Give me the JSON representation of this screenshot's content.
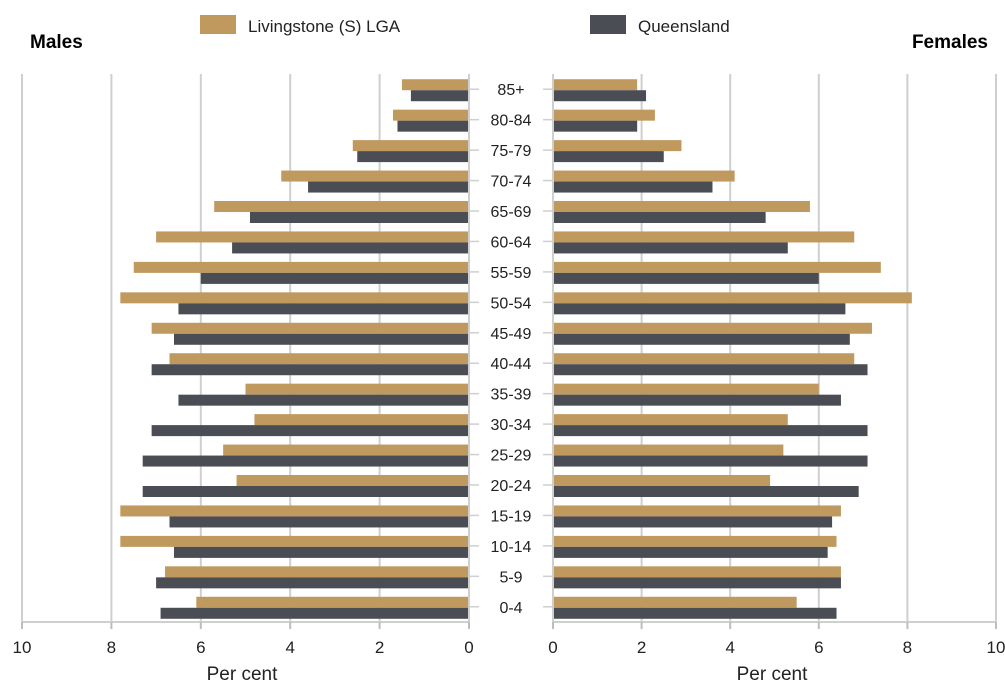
{
  "chart_data": {
    "type": "bar",
    "subtype": "population-pyramid",
    "orientation": "horizontal",
    "left_title": "Males",
    "right_title": "Females",
    "legend": [
      {
        "name": "Livingstone (S) LGA",
        "color": "#c0995f"
      },
      {
        "name": "Queensland",
        "color": "#4a4d53"
      }
    ],
    "categories": [
      "85+",
      "80-84",
      "75-79",
      "70-74",
      "65-69",
      "60-64",
      "55-59",
      "50-54",
      "45-49",
      "40-44",
      "35-39",
      "30-34",
      "25-29",
      "20-24",
      "15-19",
      "10-14",
      "5-9",
      "0-4"
    ],
    "series": [
      {
        "name": "Livingstone (S) LGA",
        "color": "#c0995f",
        "males": [
          1.5,
          1.7,
          2.6,
          4.2,
          5.7,
          7.0,
          7.5,
          7.8,
          7.1,
          6.7,
          5.0,
          4.8,
          5.5,
          5.2,
          7.8,
          7.8,
          6.8,
          6.1
        ],
        "females": [
          1.9,
          2.3,
          2.9,
          4.1,
          5.8,
          6.8,
          7.4,
          8.1,
          7.2,
          6.8,
          6.0,
          5.3,
          5.2,
          4.9,
          6.5,
          6.4,
          6.5,
          5.5
        ]
      },
      {
        "name": "Queensland",
        "color": "#4a4d53",
        "males": [
          1.3,
          1.6,
          2.5,
          3.6,
          4.9,
          5.3,
          6.0,
          6.5,
          6.6,
          7.1,
          6.5,
          7.1,
          7.3,
          7.3,
          6.7,
          6.6,
          7.0,
          6.9
        ],
        "females": [
          2.1,
          1.9,
          2.5,
          3.6,
          4.8,
          5.3,
          6.0,
          6.6,
          6.7,
          7.1,
          6.5,
          7.1,
          7.1,
          6.9,
          6.3,
          6.2,
          6.5,
          6.4
        ]
      }
    ],
    "xlabel": "Per cent",
    "xlim": [
      0,
      10
    ],
    "xticks": [
      "0",
      "2",
      "4",
      "6",
      "8",
      "10"
    ],
    "grid": true
  }
}
